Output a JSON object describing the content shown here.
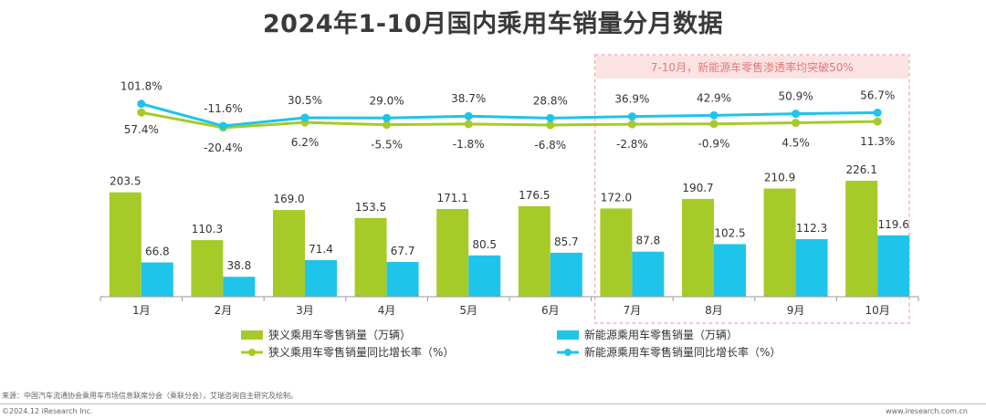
{
  "title": "2024年1-10月国内乘用车销量分月数据",
  "highlight_note": "7-10月，新能源车零售渗透率均突破50%",
  "source_text": "来源：中国汽车流通协会乘用车市场信息联席分会（乘联分会），艾瑞咨询自主研究及绘制。",
  "copyright_text": "©2024.12 iResearch Inc.",
  "website_text": "www.iresearch.com.cn",
  "colors": {
    "green": "#a6cb28",
    "blue": "#1fc4ea",
    "highlight": "#f2a5a5"
  },
  "chart_data": {
    "type": "bar",
    "categories": [
      "1月",
      "2月",
      "3月",
      "4月",
      "5月",
      "6月",
      "7月",
      "8月",
      "9月",
      "10月"
    ],
    "series": [
      {
        "name": "狭义乘用车零售销量（万辆）",
        "type": "bar",
        "color": "#a6cb28",
        "values": [
          203.5,
          110.3,
          169.0,
          153.5,
          171.1,
          176.5,
          172.0,
          190.7,
          210.9,
          226.1
        ]
      },
      {
        "name": "新能源乘用车零售销量（万辆）",
        "type": "bar",
        "color": "#1fc4ea",
        "values": [
          66.8,
          38.8,
          71.4,
          67.7,
          80.5,
          85.7,
          87.8,
          102.5,
          112.3,
          119.6
        ]
      },
      {
        "name": "狭义乘用车零售销量同比增长率（%）",
        "type": "line",
        "color": "#a6cb28",
        "values": [
          57.4,
          -20.4,
          6.2,
          -5.5,
          -1.8,
          -6.8,
          -2.8,
          -0.9,
          4.5,
          11.3
        ]
      },
      {
        "name": "新能源乘用车零售销量同比增长率（%）",
        "type": "line",
        "color": "#1fc4ea",
        "values": [
          101.8,
          -11.6,
          30.5,
          29.0,
          38.7,
          28.8,
          36.9,
          42.9,
          50.9,
          56.7
        ]
      }
    ],
    "title": "2024年1-10月国内乘用车销量分月数据",
    "xlabel": "",
    "ylabel": "",
    "grid": false,
    "legend": "bottom"
  }
}
